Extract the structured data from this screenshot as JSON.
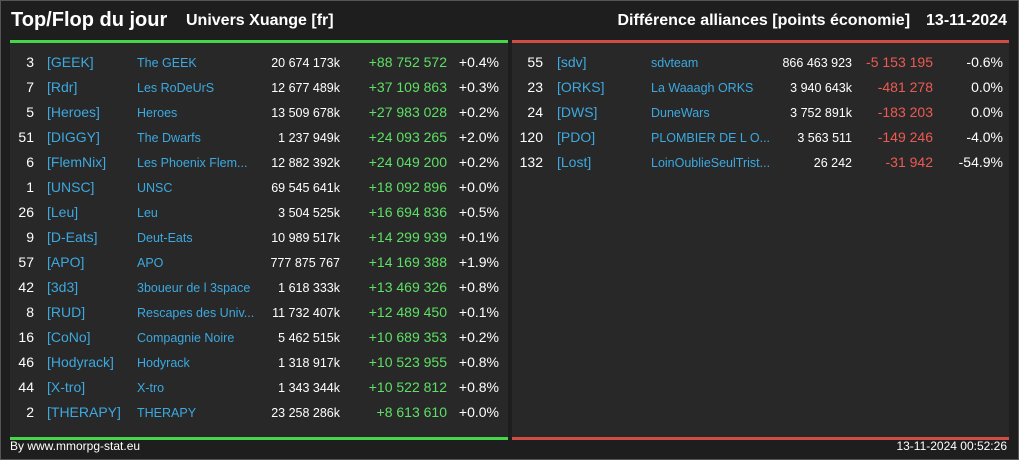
{
  "header": {
    "title": "Top/Flop du jour",
    "universe": "Univers Xuange [fr]",
    "subtitle": "Différence alliances [points économie]",
    "date": "13-11-2024"
  },
  "colors": {
    "background": "#1e1e1e",
    "panel": "#282828",
    "top_accent": "#46d64a",
    "flop_accent": "#d24c44",
    "tag_color": "#3ca9e0",
    "positive": "#5de065",
    "negative": "#ee5a52"
  },
  "top": [
    {
      "rank": "3",
      "tag": "[GEEK]",
      "name": "The GEEK",
      "points": "20 674 173k",
      "diff": "+88 752 572",
      "pct": "+0.4%"
    },
    {
      "rank": "7",
      "tag": "[Rdr]",
      "name": "Les RoDeUrS",
      "points": "12 677 489k",
      "diff": "+37 109 863",
      "pct": "+0.3%"
    },
    {
      "rank": "5",
      "tag": "[Heroes]",
      "name": "Heroes",
      "points": "13 509 678k",
      "diff": "+27 983 028",
      "pct": "+0.2%"
    },
    {
      "rank": "51",
      "tag": "[DIGGY]",
      "name": "The Dwarfs",
      "points": "1 237 949k",
      "diff": "+24 093 265",
      "pct": "+2.0%"
    },
    {
      "rank": "6",
      "tag": "[FlemNix]",
      "name": "Les Phoenix Flem...",
      "points": "12 882 392k",
      "diff": "+24 049 200",
      "pct": "+0.2%"
    },
    {
      "rank": "1",
      "tag": "[UNSC]",
      "name": "UNSC",
      "points": "69 545 641k",
      "diff": "+18 092 896",
      "pct": "+0.0%"
    },
    {
      "rank": "26",
      "tag": "[Leu]",
      "name": "Leu",
      "points": "3 504 525k",
      "diff": "+16 694 836",
      "pct": "+0.5%"
    },
    {
      "rank": "9",
      "tag": "[D-Eats]",
      "name": "Deut-Eats",
      "points": "10 989 517k",
      "diff": "+14 299 939",
      "pct": "+0.1%"
    },
    {
      "rank": "57",
      "tag": "[APO]",
      "name": "APO",
      "points": "777 875 767",
      "diff": "+14 169 388",
      "pct": "+1.9%"
    },
    {
      "rank": "42",
      "tag": "[3d3]",
      "name": "3boueur de l 3space",
      "points": "1 618 333k",
      "diff": "+13 469 326",
      "pct": "+0.8%"
    },
    {
      "rank": "8",
      "tag": "[RUD]",
      "name": "Rescapes des Univ...",
      "points": "11 732 407k",
      "diff": "+12 489 450",
      "pct": "+0.1%"
    },
    {
      "rank": "16",
      "tag": "[CoNo]",
      "name": "Compagnie Noire",
      "points": "5 462 515k",
      "diff": "+10 689 353",
      "pct": "+0.2%"
    },
    {
      "rank": "46",
      "tag": "[Hodyrack]",
      "name": "Hodyrack",
      "points": "1 318 917k",
      "diff": "+10 523 955",
      "pct": "+0.8%"
    },
    {
      "rank": "44",
      "tag": "[X-tro]",
      "name": "X-tro",
      "points": "1 343 344k",
      "diff": "+10 522 812",
      "pct": "+0.8%"
    },
    {
      "rank": "2",
      "tag": "[THERAPY]",
      "name": "THERAPY",
      "points": "23 258 286k",
      "diff": "+8 613 610",
      "pct": "+0.0%"
    }
  ],
  "flop": [
    {
      "rank": "55",
      "tag": "[sdv]",
      "name": "sdvteam",
      "points": "866 463 923",
      "diff": "-5 153 195",
      "pct": "-0.6%"
    },
    {
      "rank": "23",
      "tag": "[ORKS]",
      "name": "La Waaagh ORKS",
      "points": "3 940 643k",
      "diff": "-481 278",
      "pct": "0.0%"
    },
    {
      "rank": "24",
      "tag": "[DWS]",
      "name": "DuneWars",
      "points": "3 752 891k",
      "diff": "-183 203",
      "pct": "0.0%"
    },
    {
      "rank": "120",
      "tag": "[PDO]",
      "name": "PLOMBIER DE L O...",
      "points": "3 563 511",
      "diff": "-149 246",
      "pct": "-4.0%"
    },
    {
      "rank": "132",
      "tag": "[Lost]",
      "name": "LoinOublieSeulTrist...",
      "points": "26 242",
      "diff": "-31 942",
      "pct": "-54.9%"
    }
  ],
  "footer": {
    "credit": "By www.mmorpg-stat.eu",
    "timestamp": "13-11-2024 00:52:26"
  }
}
